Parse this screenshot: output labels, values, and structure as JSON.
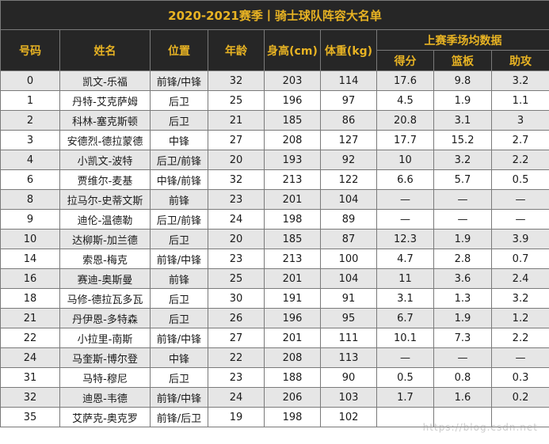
{
  "title": "2020-2021赛季丨骑士球队阵容大名单",
  "headers": {
    "number": "号码",
    "name": "姓名",
    "position": "位置",
    "age": "年龄",
    "height": "身高(cm)",
    "weight": "体重(kg)",
    "season_group": "上赛季场均数据",
    "points": "得分",
    "rebounds": "篮板",
    "assists": "助攻"
  },
  "rows": [
    {
      "number": "0",
      "name": "凯文-乐福",
      "position": "前锋/中锋",
      "age": "32",
      "height": "203",
      "weight": "114",
      "points": "17.6",
      "rebounds": "9.8",
      "assists": "3.2"
    },
    {
      "number": "1",
      "name": "丹特-艾克萨姆",
      "position": "后卫",
      "age": "25",
      "height": "196",
      "weight": "97",
      "points": "4.5",
      "rebounds": "1.9",
      "assists": "1.1"
    },
    {
      "number": "2",
      "name": "科林-塞克斯顿",
      "position": "后卫",
      "age": "21",
      "height": "185",
      "weight": "86",
      "points": "20.8",
      "rebounds": "3.1",
      "assists": "3"
    },
    {
      "number": "3",
      "name": "安德烈-德拉蒙德",
      "position": "中锋",
      "age": "27",
      "height": "208",
      "weight": "127",
      "points": "17.7",
      "rebounds": "15.2",
      "assists": "2.7"
    },
    {
      "number": "4",
      "name": "小凯文-波特",
      "position": "后卫/前锋",
      "age": "20",
      "height": "193",
      "weight": "92",
      "points": "10",
      "rebounds": "3.2",
      "assists": "2.2"
    },
    {
      "number": "6",
      "name": "贾维尔-麦基",
      "position": "中锋/前锋",
      "age": "32",
      "height": "213",
      "weight": "122",
      "points": "6.6",
      "rebounds": "5.7",
      "assists": "0.5"
    },
    {
      "number": "8",
      "name": "拉马尔-史蒂文斯",
      "position": "前锋",
      "age": "23",
      "height": "201",
      "weight": "104",
      "points": "—",
      "rebounds": "—",
      "assists": "—"
    },
    {
      "number": "9",
      "name": "迪伦-温德勒",
      "position": "后卫/前锋",
      "age": "24",
      "height": "198",
      "weight": "89",
      "points": "—",
      "rebounds": "—",
      "assists": "—"
    },
    {
      "number": "10",
      "name": "达柳斯-加兰德",
      "position": "后卫",
      "age": "20",
      "height": "185",
      "weight": "87",
      "points": "12.3",
      "rebounds": "1.9",
      "assists": "3.9"
    },
    {
      "number": "14",
      "name": "索恩-梅克",
      "position": "前锋/中锋",
      "age": "23",
      "height": "213",
      "weight": "100",
      "points": "4.7",
      "rebounds": "2.8",
      "assists": "0.7"
    },
    {
      "number": "16",
      "name": "赛迪-奥斯曼",
      "position": "前锋",
      "age": "25",
      "height": "201",
      "weight": "104",
      "points": "11",
      "rebounds": "3.6",
      "assists": "2.4"
    },
    {
      "number": "18",
      "name": "马修-德拉瓦多瓦",
      "position": "后卫",
      "age": "30",
      "height": "191",
      "weight": "91",
      "points": "3.1",
      "rebounds": "1.3",
      "assists": "3.2"
    },
    {
      "number": "21",
      "name": "丹伊恩-多特森",
      "position": "后卫",
      "age": "26",
      "height": "196",
      "weight": "95",
      "points": "6.7",
      "rebounds": "1.9",
      "assists": "1.2"
    },
    {
      "number": "22",
      "name": "小拉里-南斯",
      "position": "前锋/中锋",
      "age": "27",
      "height": "201",
      "weight": "111",
      "points": "10.1",
      "rebounds": "7.3",
      "assists": "2.2"
    },
    {
      "number": "24",
      "name": "马奎斯-博尔登",
      "position": "中锋",
      "age": "22",
      "height": "208",
      "weight": "113",
      "points": "—",
      "rebounds": "—",
      "assists": "—"
    },
    {
      "number": "31",
      "name": "马特-穆尼",
      "position": "后卫",
      "age": "23",
      "height": "188",
      "weight": "90",
      "points": "0.5",
      "rebounds": "0.8",
      "assists": "0.3"
    },
    {
      "number": "32",
      "name": "迪恩-韦德",
      "position": "前锋/中锋",
      "age": "24",
      "height": "206",
      "weight": "103",
      "points": "1.7",
      "rebounds": "1.6",
      "assists": "0.2"
    },
    {
      "number": "35",
      "name": "艾萨克-奥克罗",
      "position": "前锋/后卫",
      "age": "19",
      "height": "198",
      "weight": "102",
      "points": "",
      "rebounds": "",
      "assists": ""
    }
  ],
  "watermark": "https://blog.csdn.net"
}
